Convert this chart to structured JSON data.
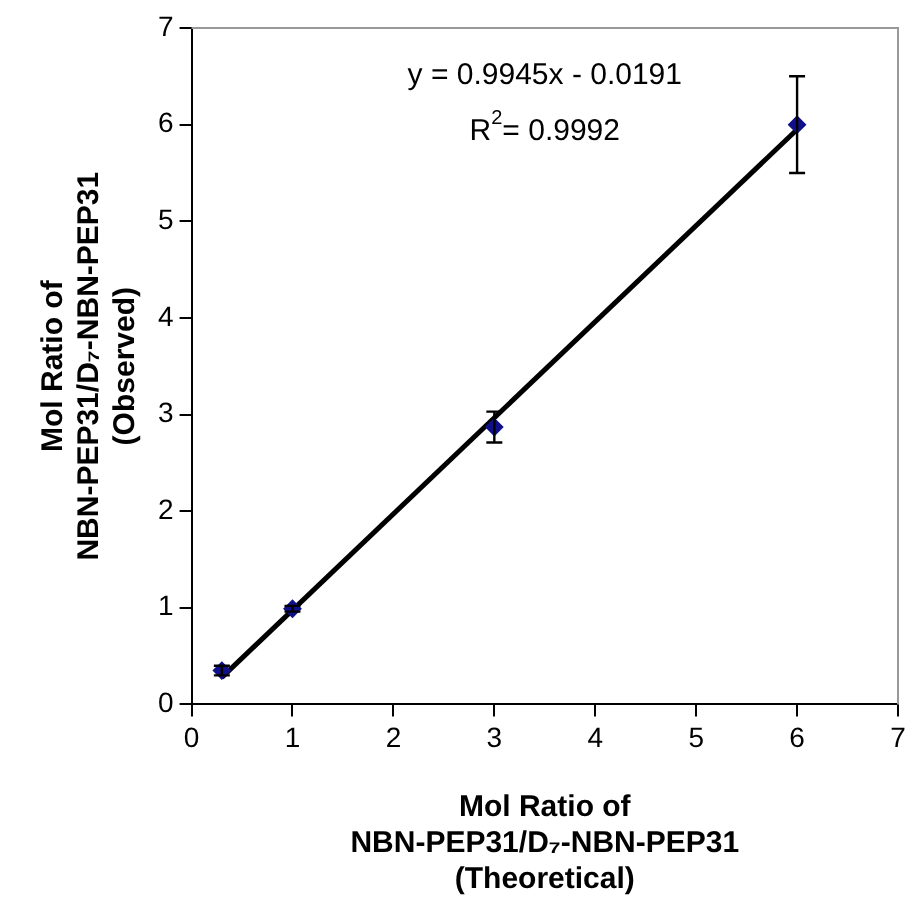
{
  "chart_data": {
    "type": "scatter",
    "xlabel": "Mol Ratio of\nNBN-PEP31/D₇-NBN-PEP31\n(Theoretical)",
    "ylabel": "Mol Ratio of\nNBN-PEP31/D₇-NBN-PEP31\n(Observed)",
    "x": [
      0.3,
      1,
      3,
      6
    ],
    "series": [
      {
        "color": "#10108a",
        "marker": "diamond",
        "values": [
          0.35,
          0.99,
          2.87,
          6.0
        ],
        "errors": [
          0.05,
          0.03,
          0.16,
          0.5
        ]
      },
      {
        "type": "line",
        "marker": "none",
        "color": "#000000",
        "x": [
          0.3,
          6
        ],
        "values": [
          0.28,
          5.95
        ]
      }
    ],
    "xlim": [
      0,
      7
    ],
    "ylim": [
      0,
      7
    ],
    "xticks": [
      0,
      1,
      2,
      3,
      4,
      5,
      6,
      7
    ],
    "yticks": [
      0,
      1,
      2,
      3,
      4,
      5,
      6,
      7
    ],
    "grid": false,
    "legend": false,
    "annotations": [
      "y = 0.9945x - 0.0191",
      "R$^{2}$= 0.9992"
    ]
  }
}
